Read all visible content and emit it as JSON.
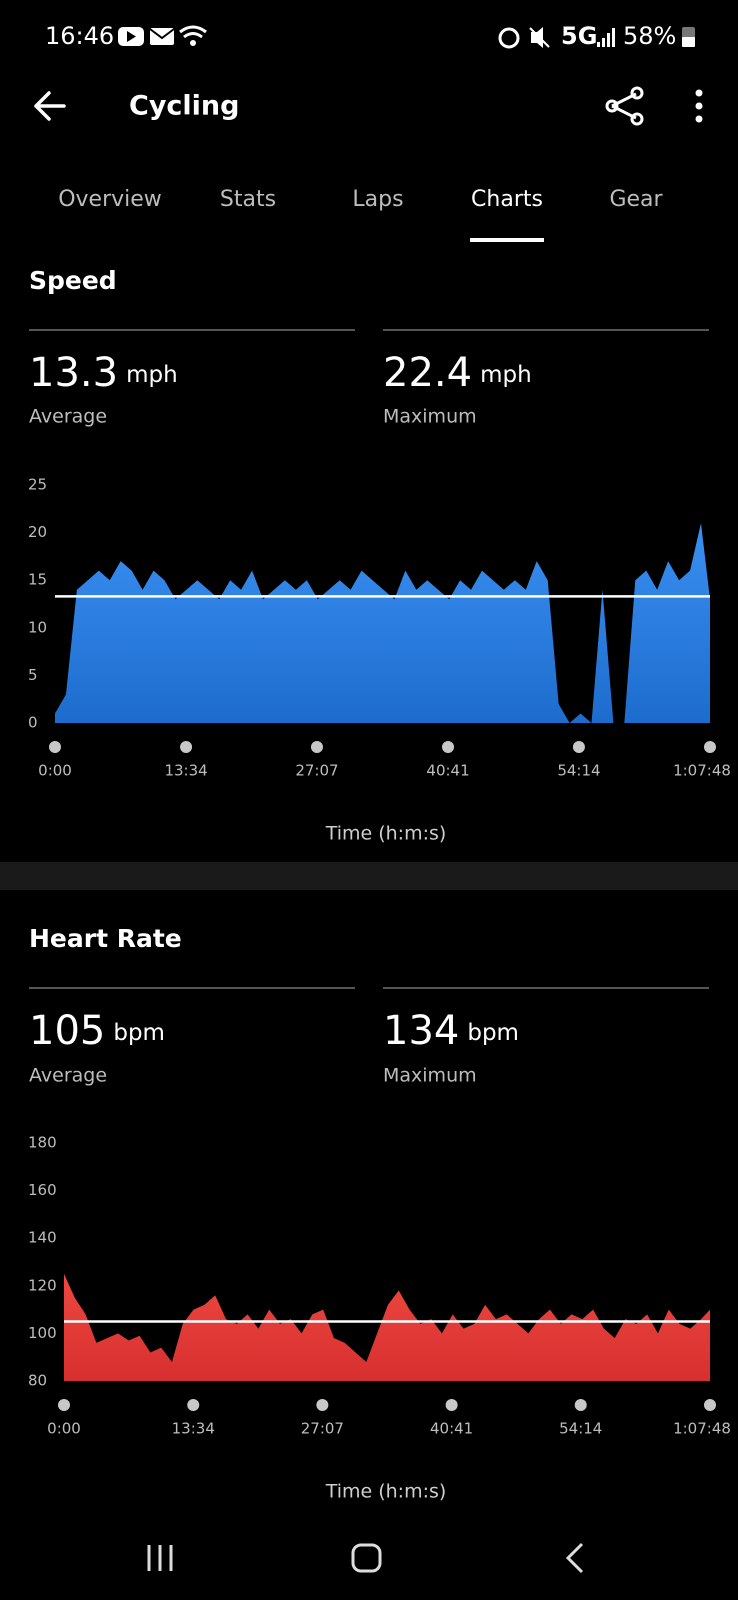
{
  "status_bar": {
    "time": "16:46",
    "network": "5G",
    "battery": "58%"
  },
  "header": {
    "title": "Cycling"
  },
  "tabs": {
    "items": [
      "Overview",
      "Stats",
      "Laps",
      "Charts",
      "Gear"
    ],
    "active": 3
  },
  "chart_data": [
    {
      "type": "area",
      "title": "Speed",
      "color": "#2a7de1",
      "stats": [
        {
          "value": 13.3,
          "unit": "mph",
          "label": "Average"
        },
        {
          "value": 22.4,
          "unit": "mph",
          "label": "Maximum"
        }
      ],
      "xlabel": "Time (h:m:s)",
      "x": [
        0,
        68,
        136,
        204,
        272,
        340,
        408,
        476,
        544,
        612,
        680,
        748,
        816,
        884,
        952,
        1020,
        1088,
        1156,
        1224,
        1292,
        1360,
        1428,
        1496,
        1564,
        1632,
        1700,
        1768,
        1836,
        1904,
        1972,
        2040,
        2108,
        2176,
        2244,
        2312,
        2380,
        2448,
        2516,
        2584,
        2652,
        2720,
        2788,
        2856,
        2924,
        2992,
        3060,
        3128,
        3196,
        3264,
        3332,
        3400,
        3468,
        3536,
        3604,
        3672,
        3740,
        3808,
        3876,
        3944,
        4012,
        4068
      ],
      "values": [
        1,
        3,
        14,
        15,
        16,
        15,
        17,
        16,
        14,
        16,
        15,
        13,
        14,
        15,
        14,
        13,
        15,
        14,
        16,
        13,
        14,
        15,
        14,
        15,
        13,
        14,
        15,
        14,
        16,
        15,
        14,
        13,
        16,
        14,
        15,
        14,
        13,
        15,
        14,
        16,
        15,
        14,
        15,
        14,
        17,
        15,
        2,
        0,
        1,
        0,
        14,
        0,
        0,
        15,
        16,
        14,
        17,
        15,
        16,
        21,
        13
      ],
      "xlim": [
        0,
        4068
      ],
      "xticks": [
        {
          "value": 0,
          "label": "0:00"
        },
        {
          "value": 814,
          "label": "13:34"
        },
        {
          "value": 1627,
          "label": "27:07"
        },
        {
          "value": 2441,
          "label": "40:41"
        },
        {
          "value": 3254,
          "label": "54:14"
        },
        {
          "value": 4068,
          "label": "1:07:48"
        }
      ],
      "ylim": [
        0,
        25
      ],
      "yticks": [
        0,
        5,
        10,
        15,
        20,
        25
      ]
    },
    {
      "type": "area",
      "title": "Heart Rate",
      "color": "#e53935",
      "stats": [
        {
          "value": 105,
          "unit": "bpm",
          "label": "Average"
        },
        {
          "value": 134,
          "unit": "bpm",
          "label": "Maximum"
        }
      ],
      "xlabel": "Time (h:m:s)",
      "x": [
        0,
        68,
        136,
        204,
        272,
        340,
        408,
        476,
        544,
        612,
        680,
        748,
        816,
        884,
        952,
        1020,
        1088,
        1156,
        1224,
        1292,
        1360,
        1428,
        1496,
        1564,
        1632,
        1700,
        1768,
        1836,
        1904,
        1972,
        2040,
        2108,
        2176,
        2244,
        2312,
        2380,
        2448,
        2516,
        2584,
        2652,
        2720,
        2788,
        2856,
        2924,
        2992,
        3060,
        3128,
        3196,
        3264,
        3332,
        3400,
        3468,
        3536,
        3604,
        3672,
        3740,
        3808,
        3876,
        3944,
        4012,
        4068
      ],
      "values": [
        125,
        115,
        108,
        96,
        98,
        100,
        97,
        99,
        92,
        94,
        88,
        104,
        110,
        112,
        116,
        106,
        104,
        108,
        102,
        110,
        104,
        106,
        100,
        108,
        110,
        98,
        96,
        92,
        88,
        100,
        112,
        118,
        110,
        104,
        106,
        100,
        108,
        102,
        104,
        112,
        106,
        108,
        104,
        100,
        106,
        110,
        104,
        108,
        106,
        110,
        102,
        98,
        106,
        104,
        108,
        100,
        110,
        104,
        102,
        106,
        110
      ],
      "xlim": [
        0,
        4068
      ],
      "xticks": [
        {
          "value": 0,
          "label": "0:00"
        },
        {
          "value": 814,
          "label": "13:34"
        },
        {
          "value": 1627,
          "label": "27:07"
        },
        {
          "value": 2441,
          "label": "40:41"
        },
        {
          "value": 3254,
          "label": "54:14"
        },
        {
          "value": 4068,
          "label": "1:07:48"
        }
      ],
      "ylim": [
        80,
        180
      ],
      "yticks": [
        80,
        100,
        120,
        140,
        160,
        180
      ]
    }
  ]
}
